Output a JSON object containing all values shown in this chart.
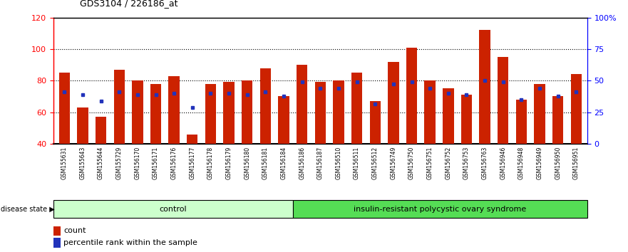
{
  "title": "GDS3104 / 226186_at",
  "samples": [
    "GSM155631",
    "GSM155643",
    "GSM155644",
    "GSM155729",
    "GSM156170",
    "GSM156171",
    "GSM156176",
    "GSM156177",
    "GSM156178",
    "GSM156179",
    "GSM156180",
    "GSM156181",
    "GSM156184",
    "GSM156186",
    "GSM156187",
    "GSM156510",
    "GSM156511",
    "GSM156512",
    "GSM156749",
    "GSM156750",
    "GSM156751",
    "GSM156752",
    "GSM156753",
    "GSM156763",
    "GSM156946",
    "GSM156948",
    "GSM156949",
    "GSM156950",
    "GSM156951"
  ],
  "bar_heights": [
    85,
    63,
    57,
    87,
    80,
    78,
    83,
    46,
    78,
    79,
    80,
    88,
    70,
    90,
    79,
    80,
    85,
    67,
    92,
    101,
    80,
    75,
    71,
    112,
    95,
    68,
    78,
    70,
    84
  ],
  "blue_y": [
    73,
    71,
    67,
    73,
    71,
    71,
    72,
    63,
    72,
    72,
    71,
    73,
    70,
    79,
    75,
    75,
    79,
    65,
    78,
    79,
    75,
    72,
    71,
    80,
    79,
    68,
    75,
    70,
    73
  ],
  "control_count": 13,
  "group1_label": "control",
  "group2_label": "insulin-resistant polycystic ovary syndrome",
  "ylim_left": [
    40,
    120
  ],
  "ylim_right": [
    0,
    100
  ],
  "right_ticks": [
    0,
    25,
    50,
    75,
    100
  ],
  "right_tick_labels": [
    "0",
    "25",
    "50",
    "75",
    "100%"
  ],
  "left_ticks": [
    40,
    60,
    80,
    100,
    120
  ],
  "bar_color": "#CC2200",
  "blue_color": "#2233BB",
  "control_bg": "#CCFFCC",
  "disease_bg": "#55DD55",
  "xtick_bg": "#CCCCCC",
  "legend_count_label": "count",
  "legend_pct_label": "percentile rank within the sample",
  "disease_state_label": "disease state"
}
